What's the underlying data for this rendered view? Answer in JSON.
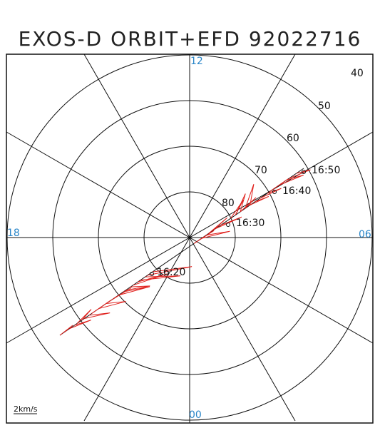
{
  "title": "EXOS-D ORBIT+EFD 92022716",
  "mlt_labels": {
    "top": "12",
    "left": "18",
    "right": "06",
    "bottom": "00"
  },
  "lat_labels": [
    "40",
    "50",
    "60",
    "70",
    "80"
  ],
  "time_labels": [
    "16:50",
    "16:40",
    "16:30",
    "16:20"
  ],
  "scale_label": "2km/s",
  "colors": {
    "grid": "#111111",
    "mlt": "#2a86c8",
    "trace": "#e0201c"
  }
}
